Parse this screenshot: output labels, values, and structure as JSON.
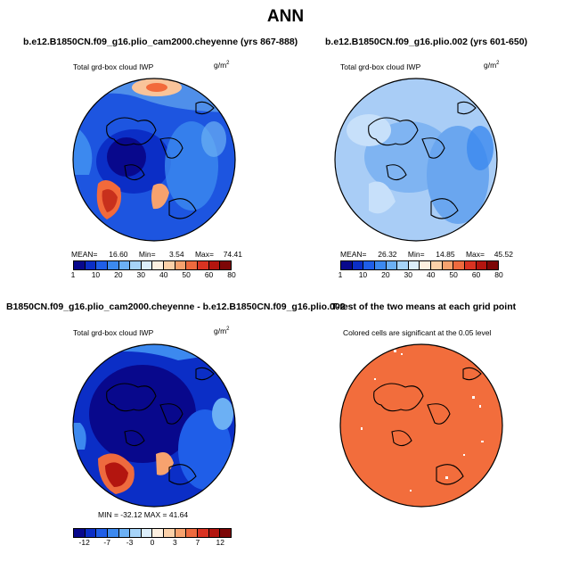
{
  "title": "ANN",
  "panels": [
    {
      "id": "p1",
      "title": "b.e12.B1850CN.f09_g16.plio_cam2000.cheyenne (yrs 867-888)",
      "variable": "Total grd-box cloud IWP",
      "units": "g/m",
      "units_exp": "2",
      "stats": {
        "mean_label": "MEAN=",
        "mean": "16.60",
        "min_label": "Min=",
        "min": "3.54",
        "max_label": "Max=",
        "max": "74.41"
      },
      "colorbar": {
        "colors": [
          "#08088c",
          "#0b2ec6",
          "#1f5ee8",
          "#3c89ef",
          "#6cb0f4",
          "#a6d3f8",
          "#dceefb",
          "#fdf0e0",
          "#fbd0a8",
          "#f7a26e",
          "#ee6a3e",
          "#d93322",
          "#b3150f",
          "#7d0606"
        ],
        "labels": [
          "1",
          "10",
          "20",
          "30",
          "40",
          "50",
          "60",
          "80"
        ]
      }
    },
    {
      "id": "p2",
      "title": "b.e12.B1850CN.f09_g16.plio.002 (yrs 601-650)",
      "variable": "Total grd-box cloud IWP",
      "units": "g/m",
      "units_exp": "2",
      "stats": {
        "mean_label": "MEAN=",
        "mean": "26.32",
        "min_label": "Min=",
        "min": "14.85",
        "max_label": "Max=",
        "max": "45.52"
      },
      "colorbar": {
        "colors": [
          "#08088c",
          "#0b2ec6",
          "#1f5ee8",
          "#3c89ef",
          "#6cb0f4",
          "#a6d3f8",
          "#dceefb",
          "#fdf0e0",
          "#fbd0a8",
          "#f7a26e",
          "#ee6a3e",
          "#d93322",
          "#b3150f",
          "#7d0606"
        ],
        "labels": [
          "1",
          "10",
          "20",
          "30",
          "40",
          "50",
          "60",
          "80"
        ]
      }
    },
    {
      "id": "p3",
      "title": "B1850CN.f09_g16.plio_cam2000.cheyenne - b.e12.B1850CN.f09_g16.plio.002",
      "variable": "Total grd-box cloud IWP",
      "units": "g/m",
      "units_exp": "2",
      "stats_line": "MIN = -32.12  MAX =  41.64",
      "colorbar": {
        "colors": [
          "#08088c",
          "#0b2ec6",
          "#1f5ee8",
          "#3c89ef",
          "#6cb0f4",
          "#a6d3f8",
          "#dceefb",
          "#fdf0e0",
          "#fbd0a8",
          "#f7a26e",
          "#ee6a3e",
          "#d93322",
          "#b3150f",
          "#7d0606"
        ],
        "labels": [
          "-12",
          "-7",
          "-3",
          "0",
          "3",
          "7",
          "12"
        ]
      }
    },
    {
      "id": "p4",
      "title": "T-test of the two means at each grid point",
      "note": "Colored cells are significant at the 0.05 level"
    }
  ],
  "map_colors": {
    "deep_blue": "#0a1a8c",
    "mid_blue": "#1d4fd6",
    "light_blue": "#6aa6ef",
    "pale_blue": "#a9cdf6",
    "red": "#c8301c",
    "orange": "#f26a3b",
    "pale_orange": "#f9c49a",
    "sig_orange": "#f26d3c"
  }
}
